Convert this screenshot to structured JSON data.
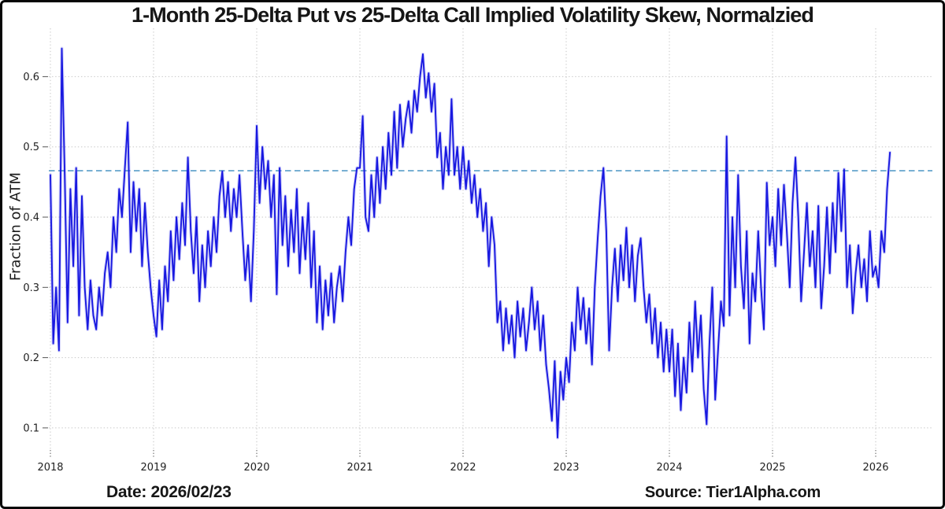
{
  "title": "1-Month 25-Delta Put vs 25-Delta Call Implied Volatility Skew, Normalzied",
  "y_axis_title": "Fraction of ATM",
  "footer": {
    "date_label": "Date: 2026/02/23",
    "source_label": "Source: Tier1Alpha.com"
  },
  "colors": {
    "series_line": "#1818e0",
    "series_glow": "rgba(70,70,235,0.22)",
    "reference_line": "#66a5cd",
    "gridline": "#c6c6c6",
    "tick_mark": "#555555",
    "frame_border": "#060606",
    "background": "#ffffff"
  },
  "chart_data": {
    "type": "line",
    "title": "1-Month 25-Delta Put vs 25-Delta Call Implied Volatility Skew, Normalzied",
    "xlabel": "",
    "ylabel": "Fraction of ATM",
    "xlim": [
      2017.985,
      2026.55
    ],
    "ylim": [
      0.064,
      0.662
    ],
    "x_ticks": [
      2018,
      2019,
      2020,
      2021,
      2022,
      2023,
      2024,
      2025,
      2026
    ],
    "y_ticks": [
      0.1,
      0.2,
      0.3,
      0.4,
      0.5,
      0.6
    ],
    "grid": true,
    "grid_style": "dotted",
    "legend": "none",
    "reference_line": {
      "value": 0.466,
      "style": "dashed",
      "color": "#66a5cd"
    },
    "series": [
      {
        "color": "#1818e0",
        "start_year": 2018,
        "points_per_year": 36,
        "end_year_fraction": 2026.14,
        "values": [
          0.46,
          0.22,
          0.3,
          0.21,
          0.64,
          0.46,
          0.25,
          0.44,
          0.33,
          0.47,
          0.26,
          0.43,
          0.3,
          0.24,
          0.31,
          0.26,
          0.24,
          0.3,
          0.26,
          0.32,
          0.35,
          0.3,
          0.4,
          0.35,
          0.44,
          0.4,
          0.47,
          0.535,
          0.35,
          0.45,
          0.38,
          0.44,
          0.33,
          0.42,
          0.35,
          0.3,
          0.26,
          0.23,
          0.31,
          0.24,
          0.33,
          0.28,
          0.38,
          0.31,
          0.4,
          0.34,
          0.42,
          0.36,
          0.485,
          0.38,
          0.32,
          0.4,
          0.28,
          0.36,
          0.3,
          0.38,
          0.33,
          0.4,
          0.35,
          0.43,
          0.465,
          0.4,
          0.45,
          0.38,
          0.44,
          0.4,
          0.46,
          0.38,
          0.31,
          0.36,
          0.28,
          0.38,
          0.53,
          0.42,
          0.5,
          0.44,
          0.48,
          0.4,
          0.46,
          0.29,
          0.47,
          0.36,
          0.43,
          0.33,
          0.41,
          0.35,
          0.44,
          0.32,
          0.4,
          0.34,
          0.42,
          0.3,
          0.38,
          0.25,
          0.33,
          0.24,
          0.31,
          0.26,
          0.32,
          0.25,
          0.3,
          0.33,
          0.28,
          0.35,
          0.4,
          0.36,
          0.44,
          0.47,
          0.47,
          0.544,
          0.4,
          0.38,
          0.46,
          0.4,
          0.485,
          0.42,
          0.5,
          0.44,
          0.52,
          0.46,
          0.55,
          0.47,
          0.56,
          0.5,
          0.54,
          0.565,
          0.52,
          0.58,
          0.55,
          0.6,
          0.632,
          0.57,
          0.605,
          0.55,
          0.59,
          0.485,
          0.52,
          0.44,
          0.5,
          0.46,
          0.568,
          0.46,
          0.5,
          0.44,
          0.5,
          0.44,
          0.48,
          0.42,
          0.46,
          0.4,
          0.44,
          0.38,
          0.42,
          0.33,
          0.4,
          0.36,
          0.25,
          0.28,
          0.21,
          0.27,
          0.22,
          0.26,
          0.2,
          0.28,
          0.23,
          0.27,
          0.21,
          0.25,
          0.3,
          0.24,
          0.28,
          0.21,
          0.26,
          0.19,
          0.155,
          0.11,
          0.195,
          0.086,
          0.18,
          0.14,
          0.2,
          0.165,
          0.25,
          0.21,
          0.3,
          0.24,
          0.285,
          0.22,
          0.27,
          0.19,
          0.3,
          0.37,
          0.43,
          0.47,
          0.38,
          0.21,
          0.3,
          0.355,
          0.28,
          0.36,
          0.31,
          0.385,
          0.3,
          0.36,
          0.28,
          0.345,
          0.37,
          0.3,
          0.25,
          0.29,
          0.22,
          0.27,
          0.2,
          0.25,
          0.18,
          0.24,
          0.18,
          0.24,
          0.145,
          0.22,
          0.125,
          0.2,
          0.15,
          0.25,
          0.18,
          0.28,
          0.2,
          0.26,
          0.155,
          0.105,
          0.22,
          0.3,
          0.14,
          0.21,
          0.28,
          0.245,
          0.515,
          0.26,
          0.4,
          0.3,
          0.46,
          0.33,
          0.27,
          0.38,
          0.22,
          0.32,
          0.28,
          0.38,
          0.3,
          0.24,
          0.449,
          0.36,
          0.4,
          0.33,
          0.44,
          0.36,
          0.446,
          0.38,
          0.3,
          0.42,
          0.485,
          0.4,
          0.28,
          0.35,
          0.42,
          0.33,
          0.38,
          0.3,
          0.416,
          0.27,
          0.33,
          0.414,
          0.32,
          0.42,
          0.35,
          0.463,
          0.38,
          0.468,
          0.3,
          0.36,
          0.263,
          0.32,
          0.36,
          0.3,
          0.34,
          0.28,
          0.38,
          0.315,
          0.33,
          0.3,
          0.38,
          0.35,
          0.44,
          0.492
        ]
      }
    ]
  }
}
